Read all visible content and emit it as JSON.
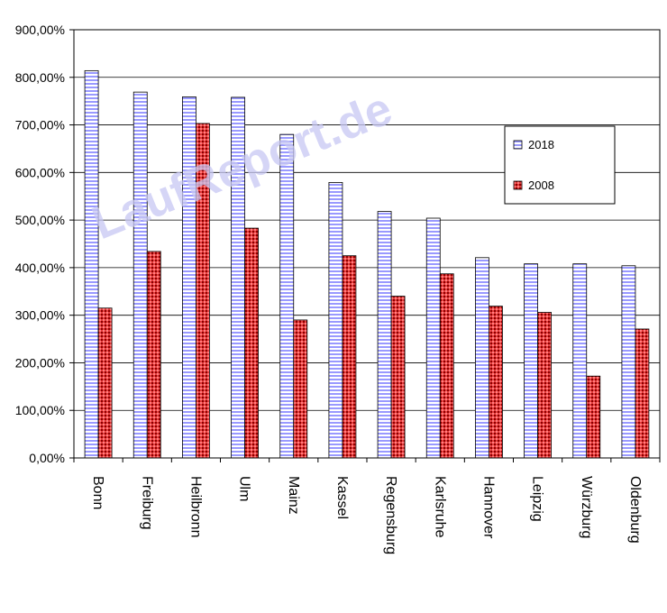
{
  "chart_data": {
    "type": "bar",
    "categories": [
      "Bonn",
      "Freiburg",
      "Heilbronn",
      "Ulm",
      "Mainz",
      "Kassel",
      "Regensburg",
      "Karlsruhe",
      "Hannover",
      "Leipzig",
      "Würzburg",
      "Oldenburg"
    ],
    "series": [
      {
        "name": "2018",
        "values": [
          814,
          769,
          759,
          758,
          680,
          579,
          518,
          504,
          421,
          408,
          408,
          404
        ]
      },
      {
        "name": "2008",
        "values": [
          315,
          434,
          703,
          483,
          290,
          425,
          340,
          387,
          319,
          306,
          172,
          271
        ]
      }
    ],
    "ylim": [
      0,
      900
    ],
    "yticks": [
      0,
      100,
      200,
      300,
      400,
      500,
      600,
      700,
      800,
      900
    ],
    "ytick_labels": [
      "0,00%",
      "100,00%",
      "200,00%",
      "300,00%",
      "400,00%",
      "500,00%",
      "600,00%",
      "700,00%",
      "800,00%",
      "900,00%"
    ],
    "grid": true,
    "legend_position": "right",
    "watermark": "LaufReport.de",
    "colors": {
      "series_2018": "#9999ff",
      "series_2008": "#cc0000"
    }
  }
}
